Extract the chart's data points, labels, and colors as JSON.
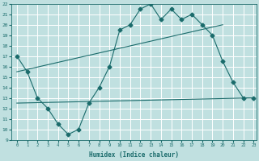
{
  "line1_x": [
    0,
    1,
    2,
    3,
    4,
    5,
    6,
    7,
    8,
    9,
    10,
    11,
    12,
    13,
    14,
    15,
    16,
    17,
    18,
    19,
    20,
    21,
    22,
    23
  ],
  "line1_y": [
    17,
    15.5,
    13,
    12,
    10.5,
    9.5,
    10,
    12.5,
    14,
    16,
    19.5,
    20,
    21.5,
    22,
    20.5,
    21.5,
    20.5,
    21,
    20,
    19,
    16.5,
    14.5,
    13,
    13
  ],
  "line2_x": [
    0,
    20
  ],
  "line2_y": [
    15.5,
    20.0
  ],
  "line3_x": [
    0,
    23
  ],
  "line3_y": [
    12.5,
    13.0
  ],
  "marker": "D",
  "markersize": 2.5,
  "line_color": "#1a6b6b",
  "bg_color": "#c0e0e0",
  "grid_color": "#ffffff",
  "xlabel": "Humidex (Indice chaleur)",
  "ylim": [
    9,
    22
  ],
  "xlim": [
    0,
    23
  ],
  "yticks": [
    9,
    10,
    11,
    12,
    13,
    14,
    15,
    16,
    17,
    18,
    19,
    20,
    21,
    22
  ],
  "xticks": [
    0,
    1,
    2,
    3,
    4,
    5,
    6,
    7,
    8,
    9,
    10,
    11,
    12,
    13,
    14,
    15,
    16,
    17,
    18,
    19,
    20,
    21,
    22,
    23
  ]
}
